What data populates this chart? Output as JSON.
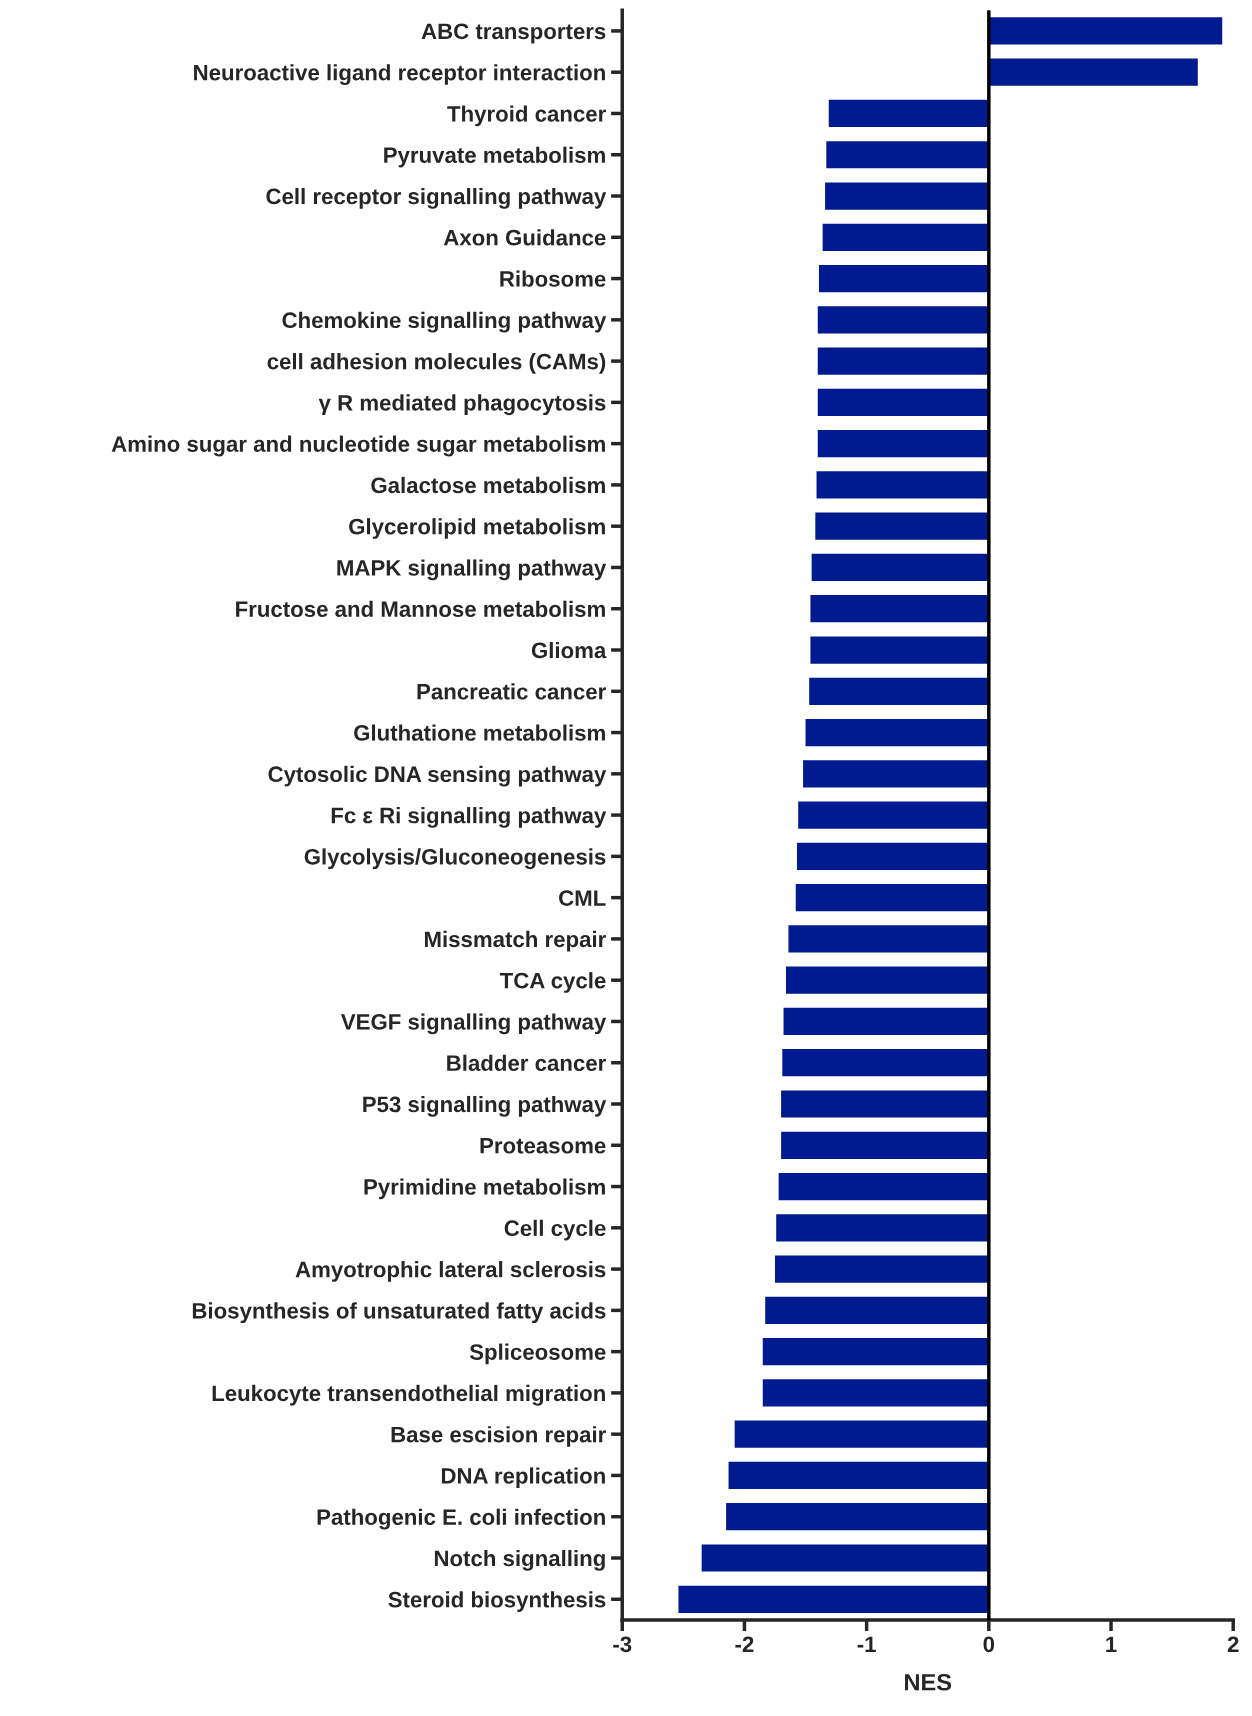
{
  "chart_data": {
    "type": "bar",
    "orientation": "horizontal",
    "xlabel": "NES",
    "color": "#021a8f",
    "categories": [
      "ABC transporters",
      "Neuroactive ligand receptor interaction",
      "Thyroid cancer",
      "Pyruvate metabolism",
      "Cell receptor signalling pathway",
      "Axon Guidance",
      "Ribosome",
      "Chemokine signalling pathway",
      "cell adhesion molecules (CAMs)",
      "γ R mediated phagocytosis",
      "Amino sugar and nucleotide sugar metabolism",
      "Galactose metabolism",
      "Glycerolipid metabolism",
      "MAPK signalling pathway",
      "Fructose and Mannose metabolism",
      "Glioma",
      "Pancreatic cancer",
      "Gluthatione metabolism",
      "Cytosolic DNA sensing pathway",
      "Fc ε Ri signalling pathway",
      "Glycolysis/Gluconeogenesis",
      "CML",
      "Missmatch repair",
      "TCA cycle",
      "VEGF signalling pathway",
      "Bladder cancer",
      "P53 signalling pathway",
      "Proteasome",
      "Pyrimidine metabolism",
      "Cell cycle",
      "Amyotrophic lateral sclerosis",
      "Biosynthesis of unsaturated fatty acids",
      "Spliceosome",
      "Leukocyte transendothelial migration",
      "Base escision repair",
      "DNA replication",
      "Pathogenic E. coli infection",
      "Notch signalling",
      "Steroid biosynthesis"
    ],
    "values": [
      1.91,
      1.71,
      -1.31,
      -1.33,
      -1.34,
      -1.36,
      -1.39,
      -1.4,
      -1.4,
      -1.4,
      -1.4,
      -1.41,
      -1.42,
      -1.45,
      -1.46,
      -1.46,
      -1.47,
      -1.5,
      -1.52,
      -1.56,
      -1.57,
      -1.58,
      -1.64,
      -1.66,
      -1.68,
      -1.69,
      -1.7,
      -1.7,
      -1.72,
      -1.74,
      -1.75,
      -1.83,
      -1.85,
      -1.85,
      -2.08,
      -2.13,
      -2.15,
      -2.35,
      -2.54
    ],
    "xlim": [
      -3,
      2
    ],
    "xticks": [
      -3,
      -2,
      -1,
      0,
      1,
      2
    ],
    "ref_lines": [
      {
        "axis": "x",
        "value": 0,
        "color": "#000000"
      }
    ],
    "grid": false,
    "legend": false
  }
}
